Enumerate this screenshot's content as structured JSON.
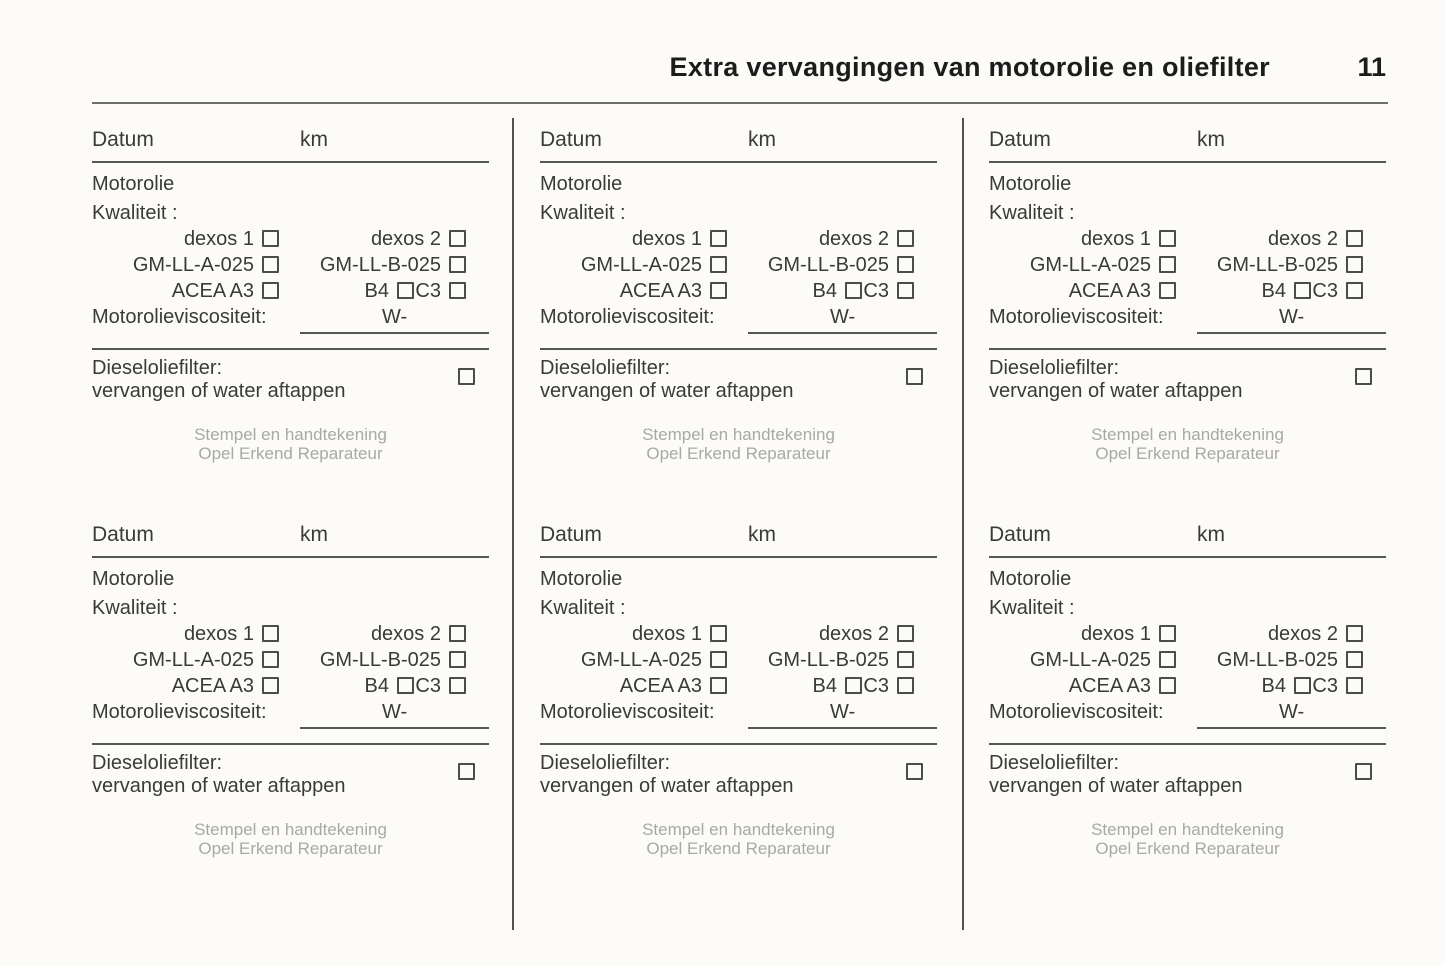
{
  "header": {
    "title": "Extra vervangingen van motorolie en oliefilter",
    "page_number": "11"
  },
  "colors": {
    "paper": "#fcfbf8",
    "text": "#3a3a3a",
    "title_text": "#1c1c1c",
    "rule": "#565656",
    "stamp_text": "#a8a8a8"
  },
  "block": {
    "datum_label": "Datum",
    "km_label": "km",
    "motorolie_label": "Motorolie",
    "kwaliteit_label": "Kwaliteit :",
    "dexos1_label": "dexos 1",
    "dexos2_label": "dexos 2",
    "gm_a_label": "GM-LL-A-025",
    "gm_b_label": "GM-LL-B-025",
    "acea_label": "ACEA A3",
    "b4_label": "B4",
    "c3_label": "C3",
    "viscositeit_label": "Motorolieviscositeit:",
    "viscositeit_suffix": "W-",
    "diesel_line1": "Dieseloliefilter:",
    "diesel_line2": "vervangen of water aftappen",
    "stamp_line1": "Stempel en handtekening",
    "stamp_line2": "Opel Erkend Reparateur",
    "checkbox_states": {
      "dexos1": false,
      "dexos2": false,
      "gm_a": false,
      "gm_b": false,
      "acea_a3": false,
      "b4": false,
      "c3": false,
      "dieseloliefilter": false
    }
  },
  "blocks": [
    {
      "id": 1
    },
    {
      "id": 2
    },
    {
      "id": 3
    },
    {
      "id": 4
    },
    {
      "id": 5
    },
    {
      "id": 6
    }
  ]
}
